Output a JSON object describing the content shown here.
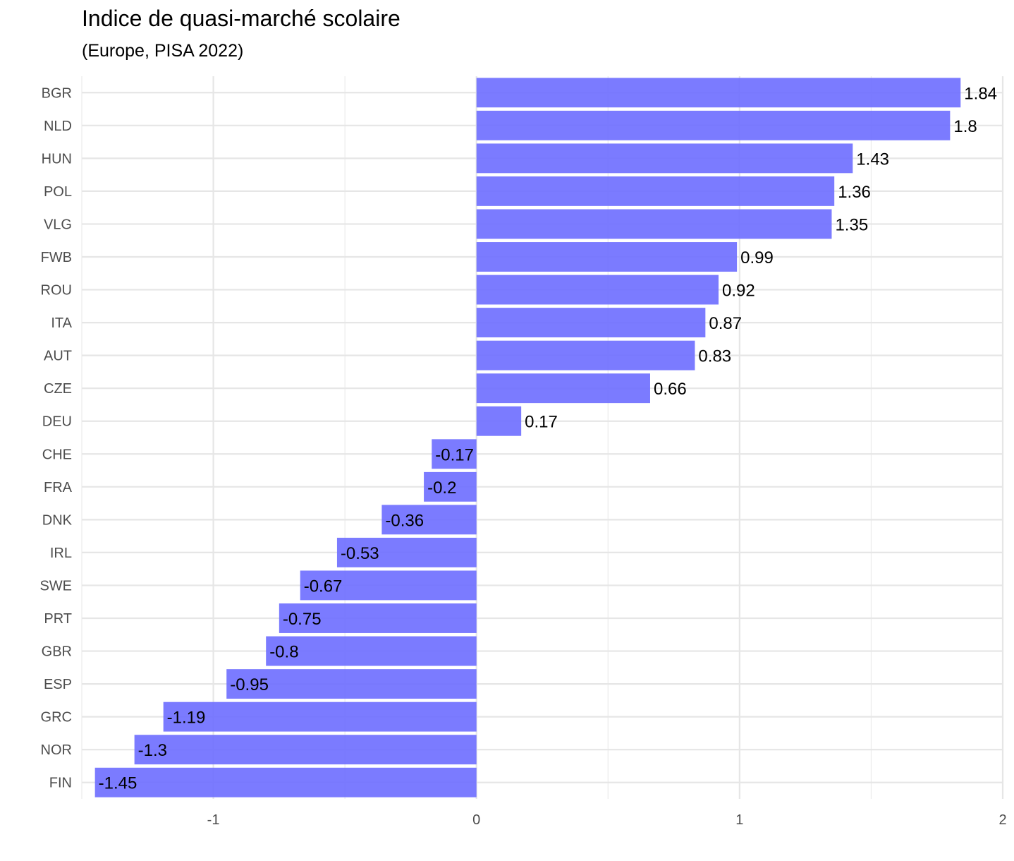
{
  "chart_data": {
    "type": "bar",
    "orientation": "horizontal",
    "title": "Indice de quasi-marché scolaire",
    "subtitle": "(Europe, PISA 2022)",
    "xlabel": "",
    "ylabel": "",
    "xlim": [
      -1.5,
      2
    ],
    "x_ticks": [
      -1,
      0,
      1,
      2
    ],
    "grid": true,
    "legend": "none",
    "bar_color": "#7070FF",
    "categories": [
      "BGR",
      "NLD",
      "HUN",
      "POL",
      "VLG",
      "FWB",
      "ROU",
      "ITA",
      "AUT",
      "CZE",
      "DEU",
      "CHE",
      "FRA",
      "DNK",
      "IRL",
      "SWE",
      "PRT",
      "GBR",
      "ESP",
      "GRC",
      "NOR",
      "FIN"
    ],
    "values": [
      1.84,
      1.8,
      1.43,
      1.36,
      1.35,
      0.99,
      0.92,
      0.87,
      0.83,
      0.66,
      0.17,
      -0.17,
      -0.2,
      -0.36,
      -0.53,
      -0.67,
      -0.75,
      -0.8,
      -0.95,
      -1.19,
      -1.3,
      -1.45
    ],
    "labels": [
      "1.84",
      "1.8",
      "1.43",
      "1.36",
      "1.35",
      "0.99",
      "0.92",
      "0.87",
      "0.83",
      "0.66",
      "0.17",
      "-0.17",
      "-0.2",
      "-0.36",
      "-0.53",
      "-0.67",
      "-0.75",
      "-0.8",
      "-0.95",
      "-1.19",
      "-1.3",
      "-1.45"
    ]
  }
}
